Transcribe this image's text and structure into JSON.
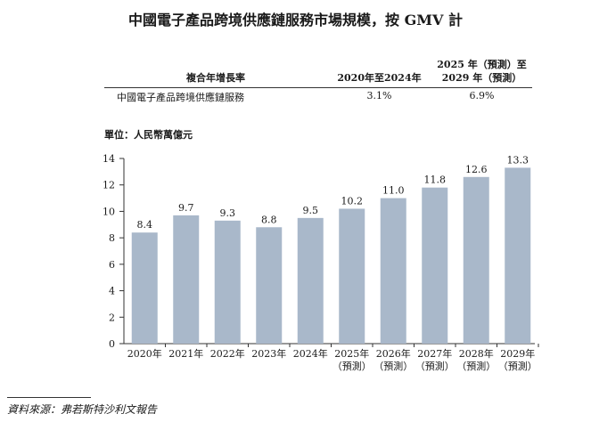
{
  "title": "中國電子產品跨境供應鏈服務市場規模，按 GMV 計",
  "cagr_table": {
    "header_label": "複合年增長率",
    "header_period1": "2020年至2024年",
    "header_period2_line1": "2025 年（預測）至",
    "header_period2_line2": "2029 年（預測）",
    "row_label": "中國電子產品跨境供應鏈服務",
    "row_value1": "3.1%",
    "row_value2": "6.9%"
  },
  "unit_label": "單位：人民幣萬億元",
  "chart_data": {
    "type": "bar",
    "title": "中國電子產品跨境供應鏈服務市場規模，按 GMV 計",
    "xlabel": "",
    "ylabel": "單位：人民幣萬億元",
    "ylim": [
      0,
      14
    ],
    "yticks": [
      0,
      2,
      4,
      6,
      8,
      10,
      12,
      14
    ],
    "grid": false,
    "categories": [
      [
        "2020年"
      ],
      [
        "2021年"
      ],
      [
        "2022年"
      ],
      [
        "2023年"
      ],
      [
        "2024年"
      ],
      [
        "2025年",
        "（預測）"
      ],
      [
        "2026年",
        "（預測）"
      ],
      [
        "2027年",
        "（預測）"
      ],
      [
        "2028年",
        "（預測）"
      ],
      [
        "2029年",
        "（預測）"
      ]
    ],
    "values": [
      8.4,
      9.7,
      9.3,
      8.8,
      9.5,
      10.2,
      11.0,
      11.8,
      12.6,
      13.3
    ],
    "value_labels": [
      "8.4",
      "9.7",
      "9.3",
      "8.8",
      "9.5",
      "10.2",
      "11.0",
      "11.8",
      "12.6",
      "13.3"
    ],
    "bar_color": "#a9b8ca",
    "axis_color": "#333333"
  },
  "source": "資料來源：弗若斯特沙利文報告"
}
